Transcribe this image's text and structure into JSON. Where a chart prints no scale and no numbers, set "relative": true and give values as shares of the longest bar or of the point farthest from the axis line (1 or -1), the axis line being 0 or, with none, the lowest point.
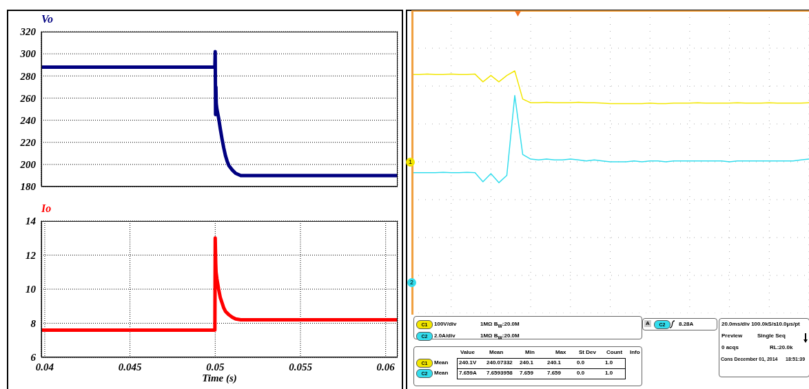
{
  "chart_data": [
    {
      "type": "line",
      "title": "Vo",
      "x": [
        0.0398,
        0.042,
        0.044,
        0.046,
        0.048,
        0.04998,
        0.05,
        0.05002,
        0.05004,
        0.05006,
        0.0501,
        0.0502,
        0.0503,
        0.0504,
        0.0505,
        0.0506,
        0.0507,
        0.0508,
        0.051,
        0.0512,
        0.0515,
        0.052,
        0.054,
        0.056,
        0.058,
        0.0607
      ],
      "series": [
        {
          "color": "#000080",
          "values": [
            288,
            288,
            288,
            288,
            288,
            288,
            302,
            245,
            270,
            255,
            250,
            242,
            232,
            223,
            215,
            208,
            203,
            199,
            195,
            192,
            190,
            190,
            190,
            190,
            190,
            190
          ]
        }
      ],
      "xlim": [
        0.0398,
        0.0607
      ],
      "xticks": [
        0.04,
        0.045,
        0.05,
        0.055,
        0.06
      ],
      "ylim": [
        180,
        320
      ],
      "yticks": [
        180,
        200,
        220,
        240,
        260,
        280,
        300,
        320
      ],
      "grid": true,
      "tick_labels": "y"
    },
    {
      "type": "line",
      "title": "Io",
      "xlabel": "Time (s)",
      "x": [
        0.0398,
        0.042,
        0.044,
        0.046,
        0.048,
        0.04998,
        0.05,
        0.05003,
        0.05005,
        0.0501,
        0.0502,
        0.0503,
        0.0504,
        0.0505,
        0.0506,
        0.0508,
        0.051,
        0.0512,
        0.0515,
        0.052,
        0.054,
        0.056,
        0.058,
        0.0607
      ],
      "series": [
        {
          "color": "#ff0000",
          "values": [
            7.6,
            7.6,
            7.6,
            7.6,
            7.6,
            7.6,
            13,
            11.5,
            11,
            10.6,
            10,
            9.5,
            9.2,
            8.9,
            8.7,
            8.5,
            8.35,
            8.25,
            8.2,
            8.2,
            8.2,
            8.2,
            8.2,
            8.2
          ]
        }
      ],
      "xlim": [
        0.0398,
        0.0607
      ],
      "xticks": [
        0.04,
        0.045,
        0.05,
        0.055,
        0.06
      ],
      "ylim": [
        6,
        14
      ],
      "yticks": [
        6,
        8,
        10,
        12,
        14
      ],
      "grid": true
    },
    {
      "type": "line",
      "relative": true,
      "grid": true,
      "categories": [
        null,
        null,
        null,
        null,
        null,
        null,
        null,
        null,
        null,
        null,
        null,
        null,
        null,
        null,
        null,
        null,
        null,
        null,
        null,
        null,
        null,
        null,
        null,
        null,
        null,
        null,
        null,
        null,
        null,
        null,
        null,
        null,
        null,
        null,
        null,
        null,
        null,
        null,
        null,
        null,
        null,
        null,
        null,
        null,
        null,
        null,
        null,
        null,
        null,
        null,
        null
      ],
      "series": [
        {
          "color": "#f2e600",
          "values": [
            0.96,
            0.96,
            0.965,
            0.96,
            0.96,
            0.965,
            0.96,
            0.96,
            0.965,
            0.88,
            0.95,
            0.88,
            0.95,
            1.0,
            0.69,
            0.65,
            0.65,
            0.655,
            0.65,
            0.65,
            0.65,
            0.655,
            0.65,
            0.65,
            0.645,
            0.64,
            0.64,
            0.64,
            0.64,
            0.64,
            0.645,
            0.64,
            0.64,
            0.645,
            0.645,
            0.645,
            0.65,
            0.645,
            0.645,
            0.645,
            0.645,
            0.65,
            0.645,
            0.645,
            0.645,
            0.65,
            0.645,
            0.645,
            0.645,
            0.645,
            0.65
          ]
        },
        {
          "color": "#33dded",
          "values": [
            -0.12,
            -0.12,
            -0.12,
            -0.12,
            -0.115,
            -0.12,
            -0.12,
            -0.115,
            -0.12,
            -0.22,
            -0.13,
            -0.23,
            -0.15,
            0.73,
            0.08,
            0.03,
            0.02,
            0.03,
            0.02,
            0.02,
            0.03,
            0.02,
            0.01,
            0.02,
            0.01,
            0.0,
            0.0,
            0.0,
            0.01,
            0.0,
            0.01,
            0.01,
            0.0,
            0.01,
            0.01,
            0.01,
            0.01,
            0.01,
            0.01,
            0.01,
            0.0,
            0.01,
            0.01,
            0.01,
            0.01,
            0.01,
            0.01,
            0.01,
            0.01,
            0.02,
            0.03
          ]
        }
      ],
      "annotations": [
        "1",
        "2",
        "C1",
        "100V/div",
        "1MΩ B$_{W}$:20.0M",
        "C2",
        "2.0A/div",
        "1MΩ B$_{W}$:20.0M",
        "A",
        "C2",
        "8.28A",
        "20.0ms/div 100.0kS/s",
        "10.0μs/pt",
        "Preview",
        "Single Seq",
        "0 acqs",
        "RL:20.0k",
        "Cons December 01, 2014",
        "18:51:39",
        "Value",
        "Mean",
        "Min",
        "Max",
        "St Dev",
        "Count",
        "Info",
        "C1",
        "Mean",
        "240.1V",
        "240.07332",
        "240.1",
        "240.1",
        "0.0",
        "1.0",
        "C2",
        "Mean",
        "7.659A",
        "7.6593958",
        "7.659",
        "7.659",
        "0.0",
        "1.0"
      ]
    }
  ]
}
